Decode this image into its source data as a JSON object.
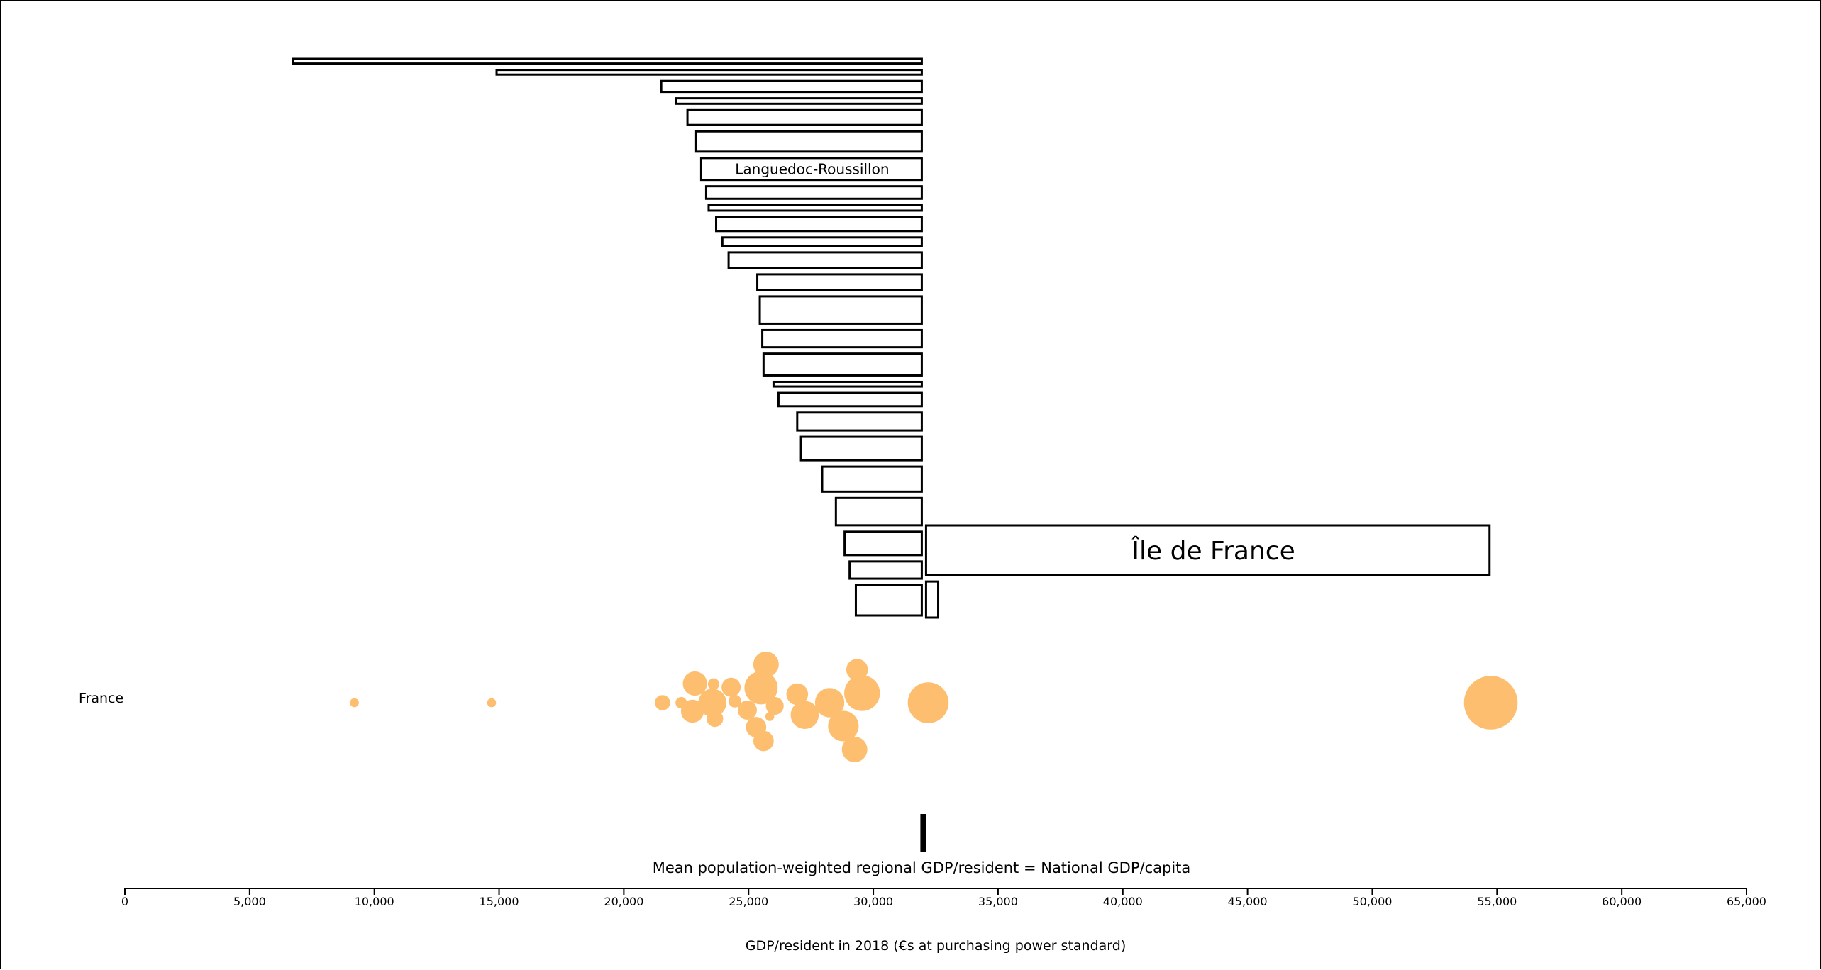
{
  "chart_data": {
    "type": "bar",
    "x_axis": {
      "label": "GDP/resident in 2018 (€s at purchasing power standard)",
      "min": 0,
      "max": 65000,
      "ticks": [
        0,
        5000,
        10000,
        15000,
        20000,
        25000,
        30000,
        35000,
        40000,
        45000,
        50000,
        55000,
        60000,
        65000
      ],
      "tick_labels": [
        "0",
        "5,000",
        "10,000",
        "15,000",
        "20,000",
        "25,000",
        "30,000",
        "35,000",
        "40,000",
        "45,000",
        "50,000",
        "55,000",
        "60,000",
        "65,000"
      ]
    },
    "national_mean": 32000,
    "mean_label": "Mean population-weighted regional GDP/resident = National GDP/capita",
    "row_label": "France",
    "bubble_color": "#fdbf6f",
    "bar_outline_color": "#000000",
    "bars": [
      {
        "gdp": 6750,
        "population": 0.06,
        "label": ""
      },
      {
        "gdp": 14900,
        "population": 0.06,
        "label": ""
      },
      {
        "gdp": 21500,
        "population": 0.14,
        "label": ""
      },
      {
        "gdp": 22100,
        "population": 0.07,
        "label": ""
      },
      {
        "gdp": 22550,
        "population": 0.19,
        "label": ""
      },
      {
        "gdp": 22900,
        "population": 0.26,
        "label": ""
      },
      {
        "gdp": 23100,
        "population": 0.28,
        "label": "Languedoc-Roussillon"
      },
      {
        "gdp": 23300,
        "population": 0.16,
        "label": ""
      },
      {
        "gdp": 23400,
        "population": 0.07,
        "label": ""
      },
      {
        "gdp": 23700,
        "population": 0.18,
        "label": ""
      },
      {
        "gdp": 23950,
        "population": 0.11,
        "label": ""
      },
      {
        "gdp": 24200,
        "population": 0.2,
        "label": ""
      },
      {
        "gdp": 25350,
        "population": 0.2,
        "label": ""
      },
      {
        "gdp": 25450,
        "population": 0.35,
        "label": ""
      },
      {
        "gdp": 25550,
        "population": 0.22,
        "label": ""
      },
      {
        "gdp": 25600,
        "population": 0.28,
        "label": ""
      },
      {
        "gdp": 26000,
        "population": 0.06,
        "label": ""
      },
      {
        "gdp": 26200,
        "population": 0.17,
        "label": ""
      },
      {
        "gdp": 26950,
        "population": 0.23,
        "label": ""
      },
      {
        "gdp": 27100,
        "population": 0.3,
        "label": ""
      },
      {
        "gdp": 27950,
        "population": 0.32,
        "label": ""
      },
      {
        "gdp": 28500,
        "population": 0.35,
        "label": ""
      },
      {
        "gdp": 28850,
        "population": 0.3,
        "label": ""
      },
      {
        "gdp": 29050,
        "population": 0.22,
        "label": ""
      },
      {
        "gdp": 29300,
        "population": 0.39,
        "label": ""
      }
    ],
    "right_bars": [
      {
        "gdp": 54700,
        "population": 0.62,
        "label": "Île de France"
      },
      {
        "gdp": 32600,
        "population": 0.45,
        "label": ""
      }
    ],
    "bubbles": [
      {
        "gdp": 9200,
        "offset": 0,
        "size": 0.35
      },
      {
        "gdp": 14700,
        "offset": 0,
        "size": 0.35
      },
      {
        "gdp": 21550,
        "offset": 0,
        "size": 0.6
      },
      {
        "gdp": 22300,
        "offset": 0,
        "size": 0.45
      },
      {
        "gdp": 22850,
        "offset": 1.8,
        "size": 0.95
      },
      {
        "gdp": 22750,
        "offset": -0.8,
        "size": 0.9
      },
      {
        "gdp": 23600,
        "offset": 1.75,
        "size": 0.45
      },
      {
        "gdp": 23550,
        "offset": 0,
        "size": 1.1
      },
      {
        "gdp": 23650,
        "offset": -1.5,
        "size": 0.65
      },
      {
        "gdp": 24300,
        "offset": 1.45,
        "size": 0.75
      },
      {
        "gdp": 24450,
        "offset": 0.15,
        "size": 0.5
      },
      {
        "gdp": 24950,
        "offset": -0.7,
        "size": 0.75
      },
      {
        "gdp": 25300,
        "offset": -2.3,
        "size": 0.8
      },
      {
        "gdp": 25500,
        "offset": 1.4,
        "size": 1.3
      },
      {
        "gdp": 25700,
        "offset": 3.6,
        "size": 1.0
      },
      {
        "gdp": 25600,
        "offset": -3.6,
        "size": 0.8
      },
      {
        "gdp": 25850,
        "offset": -1.3,
        "size": 0.35
      },
      {
        "gdp": 26050,
        "offset": -0.3,
        "size": 0.7
      },
      {
        "gdp": 26950,
        "offset": 0.8,
        "size": 0.85
      },
      {
        "gdp": 27250,
        "offset": -1.15,
        "size": 1.1
      },
      {
        "gdp": 28250,
        "offset": 0,
        "size": 1.15
      },
      {
        "gdp": 28800,
        "offset": -2.2,
        "size": 1.2
      },
      {
        "gdp": 29350,
        "offset": 3.1,
        "size": 0.85
      },
      {
        "gdp": 29550,
        "offset": 0.9,
        "size": 1.4
      },
      {
        "gdp": 29250,
        "offset": -4.4,
        "size": 1.0
      },
      {
        "gdp": 32200,
        "offset": 0,
        "size": 1.6
      },
      {
        "gdp": 54750,
        "offset": 0,
        "size": 2.1
      }
    ]
  }
}
